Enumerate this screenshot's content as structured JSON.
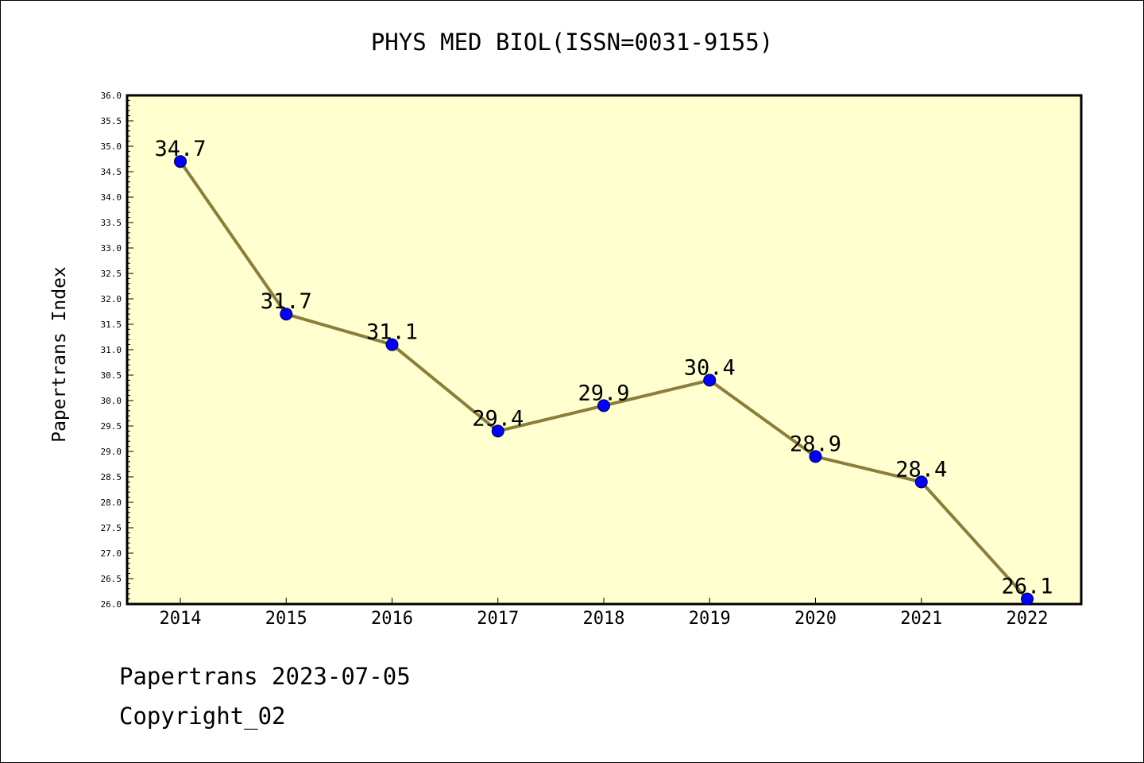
{
  "chart_data": {
    "type": "line",
    "title": "PHYS MED BIOL(ISSN=0031-9155)",
    "ylabel": "Papertrans Index",
    "xlabel": "",
    "categories": [
      "2014",
      "2015",
      "2016",
      "2017",
      "2018",
      "2019",
      "2020",
      "2021",
      "2022"
    ],
    "series": [
      {
        "values": [
          34.7,
          31.7,
          31.1,
          29.4,
          29.9,
          30.4,
          28.9,
          28.4,
          26.1
        ],
        "point_labels": [
          "34.7",
          "31.7",
          "31.1",
          "29.4",
          "29.9",
          "30.4",
          "28.9",
          "28.4",
          "26.1"
        ]
      }
    ],
    "ylim": [
      26.0,
      36.0
    ],
    "y_ticks": [
      "26.0",
      "26.5",
      "27.0",
      "27.5",
      "28.0",
      "28.5",
      "29.0",
      "29.5",
      "30.0",
      "30.5",
      "31.0",
      "31.5",
      "32.0",
      "32.5",
      "33.0",
      "33.5",
      "34.0",
      "34.5",
      "35.0",
      "35.5",
      "36.0"
    ],
    "grid": false,
    "colors": {
      "plot_background": "#ffffd0",
      "line": "#8b7d3a",
      "marker": "#0000ff"
    }
  },
  "footer": {
    "line1": "Papertrans 2023-07-05",
    "line2": "Copyright_02"
  }
}
